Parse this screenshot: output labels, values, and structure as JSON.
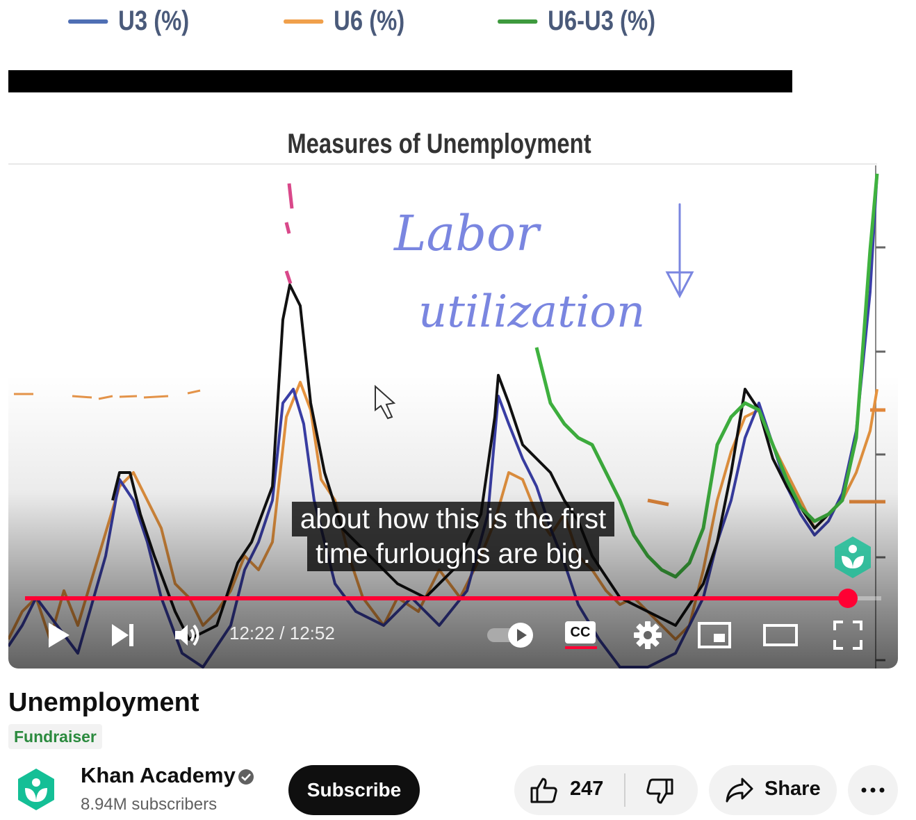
{
  "video_frame": {
    "legend": [
      {
        "name": "U3 (%)",
        "color": "#4f6fb4"
      },
      {
        "name": "U6 (%)",
        "color": "#f0a04b"
      },
      {
        "name": "U6-U3 (%)",
        "color": "#3e9a3e"
      }
    ],
    "chart_title": "Measures of Unemployment",
    "handwriting": "Labor utilization"
  },
  "chart_data": {
    "type": "line",
    "title": "Measures of Unemployment",
    "series": [
      {
        "name": "U3 (%)",
        "color": "#4f6fb4"
      },
      {
        "name": "U6 (%)",
        "color": "#f0a04b"
      },
      {
        "name": "U6-U3 (%)",
        "color": "#3e9a3e"
      }
    ]
  },
  "player": {
    "captions": [
      "about how this is the first",
      "time furloughs are big."
    ],
    "time_current": "12:22",
    "time_total": "12:52",
    "timestamp": "12:22 / 12:52",
    "progress": 0.961,
    "cc_label": "CC",
    "accent": "#ff0033"
  },
  "video": {
    "title": "Unemployment",
    "badge": "Fundraiser"
  },
  "channel": {
    "name": "Khan Academy",
    "subscribers": "8.94M subscribers",
    "brand_color": "#14bf96"
  },
  "actions": {
    "subscribe_label": "Subscribe",
    "like_count": "247",
    "share_label": "Share"
  },
  "icons": [
    "play-icon",
    "next-icon",
    "volume-icon",
    "autoplay-toggle-icon",
    "cc-icon",
    "settings-gear-icon",
    "miniplayer-icon",
    "theater-mode-icon",
    "fullscreen-icon",
    "verified-check-icon",
    "thumbs-up-icon",
    "thumbs-down-icon",
    "share-arrow-icon",
    "more-dots-icon"
  ]
}
